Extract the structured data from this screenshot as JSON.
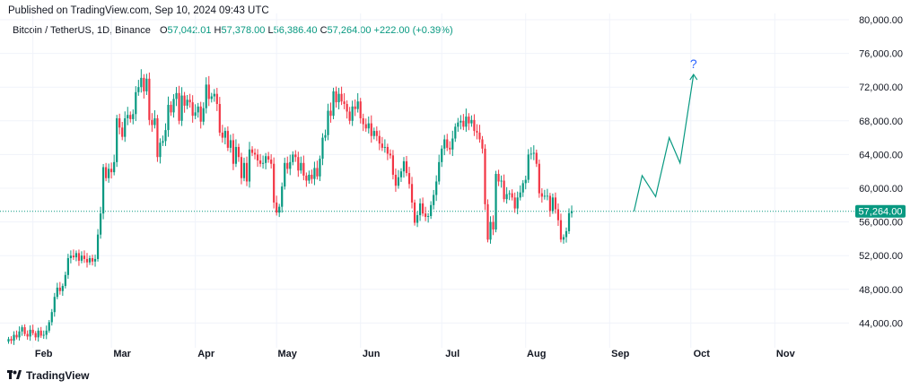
{
  "published": "Published on TradingView.com, Sep 10, 2024 09:43 UTC",
  "legend": {
    "symbol": "Bitcoin / TetherUS, 1D, Binance",
    "open_label": "O",
    "open": "57,042.01",
    "high_label": "H",
    "high": "57,378.00",
    "low_label": "L",
    "low": "56,386.40",
    "close_label": "C",
    "close": "57,264.00",
    "change": "+222.00 (+0.39%)"
  },
  "footer": {
    "brand": "TradingView",
    "logo_icon": "tradingview-logo-icon"
  },
  "colors": {
    "up": "#089981",
    "down": "#f23645",
    "accent": "#2962ff",
    "grid": "#f0f3fa"
  },
  "chart_data": {
    "type": "candlestick",
    "y_axis_labels": [
      "80,000.00",
      "76,000.00",
      "72,000.00",
      "68,000.00",
      "64,000.00",
      "60,000.00",
      "56,000.00",
      "52,000.00",
      "48,000.00",
      "44,000.00"
    ],
    "x_axis_labels": [
      "Feb",
      "Mar",
      "Apr",
      "May",
      "Jun",
      "Jul",
      "Aug",
      "Sep",
      "Oct",
      "Nov"
    ],
    "ylim": [
      40000,
      81000
    ],
    "current_price": 57264,
    "current_price_label": "57,264.00",
    "annotation": "?",
    "start_date": "2024-01-23",
    "closes": [
      42100,
      41900,
      42600,
      42300,
      43000,
      43500,
      42700,
      42400,
      43200,
      42800,
      42300,
      43100,
      42500,
      42600,
      43100,
      44100,
      45300,
      47100,
      48200,
      47800,
      48400,
      49700,
      51700,
      52000,
      51800,
      52300,
      51400,
      52000,
      51600,
      51200,
      51700,
      51300,
      51600,
      54500,
      57000,
      62500,
      61200,
      62300,
      61900,
      63100,
      68300,
      67200,
      66100,
      68300,
      68700,
      68200,
      68800,
      71400,
      72000,
      73100,
      71500,
      73000,
      68100,
      67500,
      68300,
      63700,
      65400,
      65600,
      66900,
      69900,
      69000,
      70600,
      71300,
      68000,
      71000,
      69800,
      70500,
      70200,
      68600,
      69000,
      69700,
      67900,
      69500,
      72300,
      70600,
      70900,
      71200,
      70000,
      66600,
      66000,
      66800,
      64800,
      65700,
      62900,
      64900,
      63700,
      61200,
      63000,
      60800,
      64600,
      64200,
      64000,
      63300,
      62900,
      63000,
      63800,
      63400,
      62900,
      58300,
      57100,
      57800,
      60200,
      63000,
      62300,
      63100,
      64000,
      63700,
      62100,
      63000,
      61500,
      60900,
      61600,
      61100,
      62400,
      61400,
      63500,
      66000,
      66300,
      69200,
      68600,
      71500,
      70200,
      71200,
      70300,
      70000,
      69100,
      68000,
      69700,
      69400,
      70300,
      68300,
      67600,
      67100,
      67700,
      66200,
      66800,
      66200,
      65300,
      64800,
      64900,
      64100,
      63900,
      61600,
      60300,
      61300,
      62000,
      63200,
      61800,
      60500,
      58300,
      55900,
      56800,
      58200,
      57000,
      56600,
      56700,
      58000,
      59200,
      60800,
      63100,
      64700,
      65800,
      64800,
      64600,
      65900,
      67300,
      67800,
      68000,
      67300,
      68500,
      67700,
      68100,
      66800,
      66600,
      65800,
      64700,
      58100,
      53900,
      56000,
      55100,
      61700,
      60800,
      60900,
      58700,
      59300,
      59400,
      58900,
      57600,
      58900,
      59500,
      60600,
      61000,
      64000,
      64100,
      64200,
      62900,
      59400,
      59000,
      59100,
      59100,
      57300,
      58900,
      57500,
      56200,
      53900,
      54200,
      54900,
      57042,
      57264
    ],
    "forecast_path": [
      [
        "2024-09-10",
        57264
      ],
      [
        "2024-09-13",
        61500
      ],
      [
        "2024-09-18",
        59000
      ],
      [
        "2024-09-23",
        66000
      ],
      [
        "2024-09-27",
        63000
      ],
      [
        "2024-10-02",
        73500
      ]
    ]
  }
}
